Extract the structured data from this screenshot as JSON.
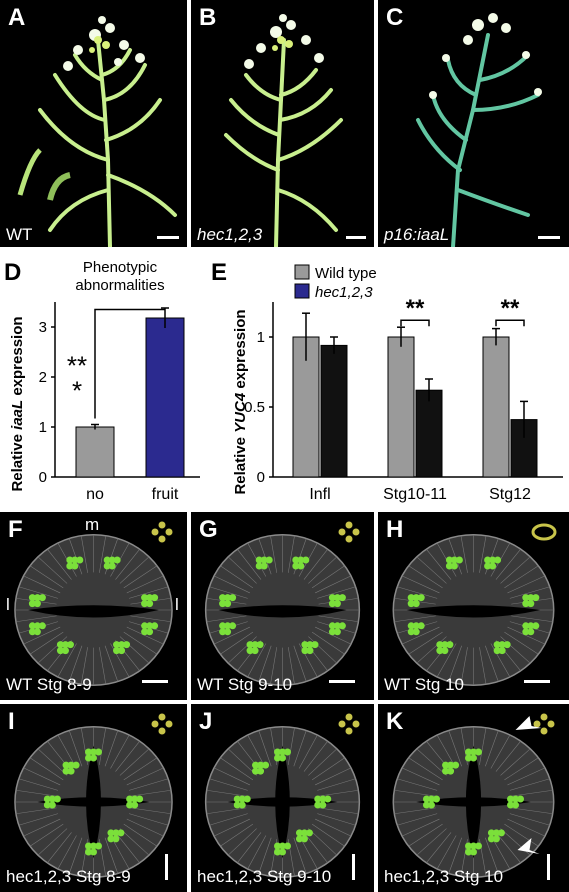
{
  "figure": {
    "panels_top": [
      {
        "label": "A",
        "caption": "WT",
        "italic": false
      },
      {
        "label": "B",
        "caption": "hec1,2,3",
        "italic": true
      },
      {
        "label": "C",
        "caption": "p16:iaaL",
        "italic": true
      }
    ],
    "panels_micro": [
      {
        "label": "F",
        "caption": "WT Stg 8-9",
        "pattern": "dots"
      },
      {
        "label": "G",
        "caption": "WT Stg 9-10",
        "pattern": "dots"
      },
      {
        "label": "H",
        "caption": "WT Stg 10",
        "pattern": "ring"
      },
      {
        "label": "I",
        "caption": "hec1,2,3 Stg 8-9",
        "pattern": "dots"
      },
      {
        "label": "J",
        "caption": "hec1,2,3 Stg 9-10",
        "pattern": "dots"
      },
      {
        "label": "K",
        "caption": "hec1,2,3 Stg 10",
        "pattern": "dots"
      }
    ],
    "annot_m": "m",
    "annot_l": "l",
    "colors": {
      "gray_bar": "#9a9a9a",
      "blue_bar": "#2b2a8f",
      "black_bar": "#111111",
      "gfp": "#7be03a",
      "pattern_dot": "#c8c44a"
    }
  },
  "chart_data": [
    {
      "panel": "D",
      "type": "bar",
      "title_line1": "Phenotypic",
      "title_line2": "abnormalities",
      "ylabel_pre": "Relative ",
      "ylabel_italic": "iaaL",
      "ylabel_post": " expression",
      "categories": [
        "no",
        "fruit"
      ],
      "values": [
        1.0,
        3.18
      ],
      "errors": [
        0.05,
        0.2
      ],
      "ylim": [
        0,
        3.5
      ],
      "yticks": [
        "0",
        "1",
        "2",
        "3"
      ],
      "significance": "**"
    },
    {
      "panel": "E",
      "type": "bar",
      "ylabel_pre": "Relative ",
      "ylabel_italic": "YUC4",
      "ylabel_post": " expression",
      "categories": [
        "Infl",
        "Stg10-11",
        "Stg12"
      ],
      "series": [
        {
          "name": "Wild type",
          "italic": false,
          "values": [
            1.0,
            1.0,
            1.0
          ],
          "errors": [
            0.17,
            0.07,
            0.06
          ]
        },
        {
          "name": "hec1,2,3",
          "italic": true,
          "values": [
            0.94,
            0.62,
            0.41
          ],
          "errors": [
            0.06,
            0.08,
            0.13
          ]
        }
      ],
      "ylim": [
        0,
        1.25
      ],
      "yticks": [
        "0",
        "0.5",
        "1"
      ],
      "significance": [
        "",
        "**",
        "**"
      ]
    }
  ]
}
